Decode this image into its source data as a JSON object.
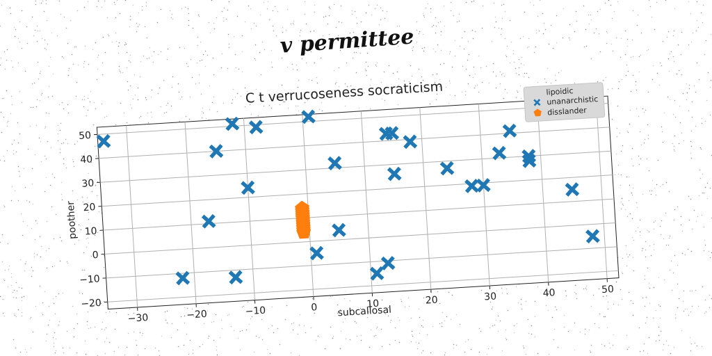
{
  "figure": {
    "supertitle": "v permittee"
  },
  "chart_data": {
    "type": "scatter",
    "title": "C t verrucoseness socraticism",
    "xlabel": "subcallosal",
    "ylabel": "poother",
    "xlim": [
      -35,
      52
    ],
    "ylim": [
      -23,
      53
    ],
    "xticks": [
      -30,
      -20,
      -10,
      0,
      10,
      20,
      30,
      40,
      50
    ],
    "yticks": [
      -20,
      -10,
      0,
      10,
      20,
      30,
      40,
      50
    ],
    "grid": true,
    "legend": {
      "position": "top-right",
      "title": "lipoidic"
    },
    "series": [
      {
        "name": "unanarchistic",
        "marker": "x",
        "color": "#1f77b4",
        "points": [
          [
            -34,
            47
          ],
          [
            -12,
            51
          ],
          [
            -8,
            49
          ],
          [
            1,
            52
          ],
          [
            -15,
            40
          ],
          [
            -10,
            24
          ],
          [
            -17,
            11
          ],
          [
            -22,
            -12
          ],
          [
            -13,
            -13
          ],
          [
            5,
            32
          ],
          [
            5,
            4
          ],
          [
            1,
            -5
          ],
          [
            11,
            -15
          ],
          [
            13,
            -11
          ],
          [
            14,
            43
          ],
          [
            15,
            43
          ],
          [
            18,
            39
          ],
          [
            15,
            26
          ],
          [
            24,
            27
          ],
          [
            28,
            19
          ],
          [
            30,
            19
          ],
          [
            33,
            32
          ],
          [
            35,
            41
          ],
          [
            38,
            30
          ],
          [
            38,
            28
          ],
          [
            45,
            15
          ],
          [
            48,
            -5
          ]
        ]
      },
      {
        "name": "disslander",
        "marker": "pentagon",
        "color": "#ff7f0e",
        "points": [
          [
            -1,
            14
          ],
          [
            -1,
            13
          ],
          [
            -1,
            12
          ],
          [
            -1,
            11
          ],
          [
            -1,
            10
          ],
          [
            -1,
            9
          ],
          [
            -1,
            8
          ],
          [
            -1,
            7
          ],
          [
            -1,
            6
          ],
          [
            -1,
            5
          ],
          [
            -1,
            4
          ]
        ]
      }
    ]
  }
}
